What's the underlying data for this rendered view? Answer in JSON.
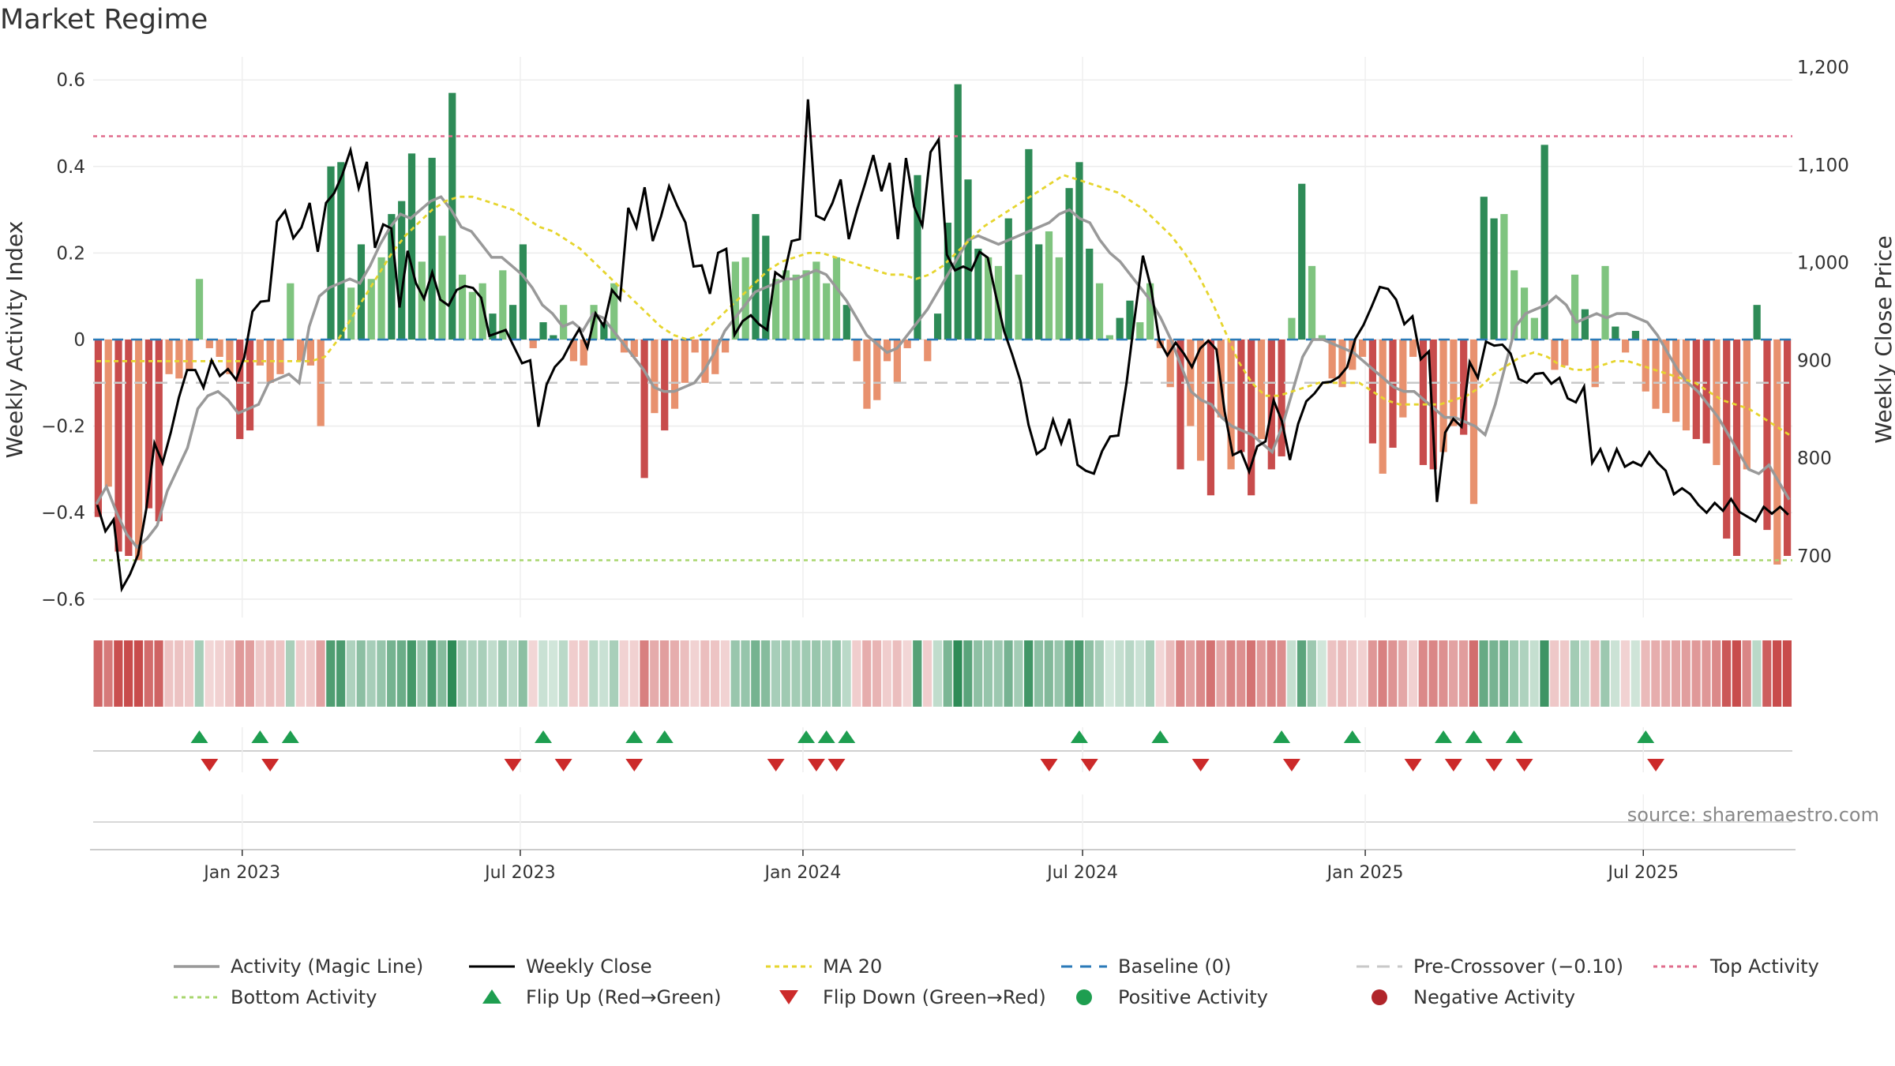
{
  "title": "Market Regime",
  "source": "source: sharemaestro.com",
  "colors": {
    "pos_strong": "#2e8b57",
    "pos_light": "#7fc47f",
    "neg_strong": "#c84c4c",
    "neg_light": "#e8916e",
    "magic_line": "#999999",
    "close_line": "#000000",
    "ma20": "#e6d52e",
    "baseline": "#2a7ab8",
    "pre_crossover": "#c8c8c8",
    "top_activity": "#e06c8c",
    "bottom_activity": "#a8d66e",
    "flip_up": "#1e9e50",
    "flip_down": "#cc2a2a"
  },
  "chart_data": {
    "type": "bar",
    "x_axis": {
      "ticks": [
        "Jan 2023",
        "Jul 2023",
        "Jan 2024",
        "Jul 2024",
        "Jan 2025",
        "Jul 2025"
      ],
      "range": [
        "2022-09-26",
        "2025-10-06"
      ]
    },
    "y_left": {
      "label": "Weekly Activity Index",
      "range": [
        -0.64,
        0.64
      ],
      "ticks": [
        "0.6",
        "0.4",
        "0.2",
        "0",
        "−0.2",
        "−0.4",
        "−0.6"
      ]
    },
    "y_right": {
      "label": "Weekly Close Price",
      "range": [
        645,
        1200
      ],
      "ticks": [
        "1,200",
        "1,100",
        "1,000",
        "900",
        "800",
        "700"
      ]
    },
    "levels": {
      "top_activity": 0.47,
      "bottom_activity": -0.51,
      "pre_crossover": -0.1,
      "baseline": 0
    },
    "activity": [
      -0.41,
      -0.34,
      -0.49,
      -0.5,
      -0.51,
      -0.39,
      -0.42,
      -0.08,
      -0.09,
      -0.07,
      0.14,
      -0.02,
      -0.04,
      -0.08,
      -0.23,
      -0.21,
      -0.06,
      -0.1,
      -0.08,
      0.13,
      -0.05,
      -0.06,
      -0.2,
      0.4,
      0.41,
      0.12,
      0.22,
      0.14,
      0.19,
      0.29,
      0.32,
      0.43,
      0.18,
      0.42,
      0.24,
      0.57,
      0.15,
      0.11,
      0.13,
      0.06,
      0.16,
      0.08,
      0.22,
      -0.02,
      0.04,
      0.01,
      0.08,
      -0.05,
      -0.06,
      0.08,
      0.04,
      0.13,
      -0.03,
      -0.04,
      -0.32,
      -0.17,
      -0.21,
      -0.16,
      -0.1,
      -0.03,
      -0.1,
      -0.08,
      -0.03,
      0.18,
      0.19,
      0.29,
      0.24,
      0.14,
      0.16,
      0.15,
      0.16,
      0.18,
      0.13,
      0.19,
      0.08,
      -0.05,
      -0.16,
      -0.14,
      -0.05,
      -0.1,
      -0.02,
      0.38,
      -0.05,
      0.06,
      0.27,
      0.59,
      0.37,
      0.21,
      0.19,
      0.17,
      0.28,
      0.15,
      0.44,
      0.22,
      0.25,
      0.19,
      0.35,
      0.41,
      0.21,
      0.13,
      0.01,
      0.05,
      0.09,
      0.04,
      0.13,
      -0.02,
      -0.11,
      -0.3,
      -0.2,
      -0.28,
      -0.36,
      -0.18,
      -0.3,
      -0.26,
      -0.36,
      -0.23,
      -0.3,
      -0.27,
      0.05,
      0.36,
      0.17,
      0.01,
      -0.09,
      -0.11,
      -0.07,
      -0.04,
      -0.24,
      -0.31,
      -0.25,
      -0.18,
      -0.04,
      -0.29,
      -0.3,
      -0.26,
      -0.2,
      -0.22,
      -0.38,
      0.33,
      0.28,
      0.29,
      0.16,
      0.12,
      0.05,
      0.45,
      -0.07,
      -0.06,
      0.15,
      0.07,
      -0.11,
      0.17,
      0.03,
      -0.03,
      0.02,
      -0.12,
      -0.16,
      -0.17,
      -0.19,
      -0.21,
      -0.23,
      -0.24,
      -0.29,
      -0.46,
      -0.5,
      -0.3,
      0.08,
      -0.44,
      -0.52,
      -0.5
    ],
    "series": [
      {
        "name": "Weekly Close",
        "axis": "right",
        "values": [
          752,
          725,
          737,
          666,
          681,
          701,
          748,
          815,
          795,
          826,
          862,
          890,
          890,
          872,
          900,
          884,
          891,
          880,
          903,
          950,
          960,
          961,
          1042,
          1053,
          1025,
          1036,
          1061,
          1011,
          1061,
          1071,
          1090,
          1115,
          1076,
          1103,
          1015,
          1039,
          1035,
          954,
          1012,
          979,
          963,
          990,
          962,
          956,
          972,
          976,
          974,
          964,
          925,
          928,
          931,
          914,
          897,
          900,
          832,
          875,
          893,
          902,
          918,
          932,
          913,
          948,
          935,
          972,
          962,
          1056,
          1036,
          1077,
          1022,
          1047,
          1078,
          1058,
          1041,
          996,
          997,
          968,
          1010,
          1014,
          926,
          940,
          946,
          937,
          931,
          990,
          984,
          1022,
          1024,
          1167,
          1048,
          1044,
          1061,
          1085,
          1024,
          1054,
          1081,
          1110,
          1073,
          1102,
          1024,
          1107,
          1057,
          1038,
          1113,
          1126,
          1008,
          992,
          996,
          992,
          1011,
          1005,
          966,
          930,
          906,
          879,
          834,
          804,
          810,
          839,
          815,
          840,
          793,
          787,
          784,
          807,
          822,
          823,
          877,
          944,
          1007,
          974,
          920,
          905,
          918,
          907,
          893,
          912,
          920,
          911,
          848,
          803,
          807,
          786,
          812,
          817,
          859,
          838,
          798,
          835,
          858,
          866,
          877,
          878,
          883,
          893,
          922,
          936,
          955,
          975,
          973,
          962,
          937,
          945,
          901,
          909,
          755,
          826,
          840,
          832,
          898,
          882,
          919,
          915,
          916,
          907,
          881,
          877,
          886,
          887,
          876,
          882,
          861,
          857,
          873,
          795,
          809,
          788,
          809,
          791,
          796,
          792,
          806,
          795,
          787,
          763,
          769,
          763,
          752,
          744,
          754,
          746,
          758,
          745,
          740,
          735,
          750,
          743,
          750,
          742
        ]
      },
      {
        "name": "Activity (Magic Line)",
        "axis": "left",
        "values": [
          -0.38,
          -0.34,
          -0.4,
          -0.45,
          -0.48,
          -0.46,
          -0.43,
          -0.35,
          -0.3,
          -0.25,
          -0.16,
          -0.13,
          -0.12,
          -0.14,
          -0.17,
          -0.16,
          -0.15,
          -0.1,
          -0.09,
          -0.08,
          -0.1,
          0.03,
          0.1,
          0.12,
          0.13,
          0.14,
          0.13,
          0.17,
          0.22,
          0.26,
          0.29,
          0.28,
          0.3,
          0.32,
          0.33,
          0.3,
          0.26,
          0.25,
          0.22,
          0.19,
          0.19,
          0.17,
          0.15,
          0.12,
          0.08,
          0.06,
          0.03,
          0.04,
          0.02,
          0.06,
          0.05,
          0.02,
          -0.01,
          -0.04,
          -0.07,
          -0.11,
          -0.12,
          -0.12,
          -0.11,
          -0.1,
          -0.07,
          -0.03,
          0.02,
          0.05,
          0.08,
          0.11,
          0.12,
          0.13,
          0.14,
          0.14,
          0.15,
          0.16,
          0.15,
          0.12,
          0.09,
          0.05,
          0.01,
          -0.01,
          -0.03,
          -0.02,
          0.01,
          0.04,
          0.07,
          0.11,
          0.15,
          0.19,
          0.23,
          0.24,
          0.23,
          0.22,
          0.23,
          0.24,
          0.25,
          0.26,
          0.27,
          0.29,
          0.3,
          0.28,
          0.27,
          0.23,
          0.2,
          0.18,
          0.15,
          0.12,
          0.09,
          0.05,
          0.0,
          -0.06,
          -0.12,
          -0.14,
          -0.15,
          -0.18,
          -0.2,
          -0.21,
          -0.22,
          -0.24,
          -0.26,
          -0.2,
          -0.12,
          -0.04,
          0.0,
          0.0,
          -0.01,
          -0.02,
          -0.03,
          -0.05,
          -0.07,
          -0.09,
          -0.11,
          -0.12,
          -0.12,
          -0.14,
          -0.16,
          -0.18,
          -0.18,
          -0.19,
          -0.2,
          -0.22,
          -0.15,
          -0.06,
          0.03,
          0.06,
          0.07,
          0.08,
          0.1,
          0.08,
          0.04,
          0.05,
          0.06,
          0.05,
          0.06,
          0.06,
          0.05,
          0.04,
          0.01,
          -0.03,
          -0.07,
          -0.1,
          -0.12,
          -0.15,
          -0.18,
          -0.22,
          -0.26,
          -0.3,
          -0.31,
          -0.29,
          -0.33,
          -0.37
        ],
        "offset": 2
      },
      {
        "name": "MA 20",
        "axis": "left",
        "values": [
          -0.05,
          -0.05,
          -0.05,
          -0.05,
          -0.05,
          -0.05,
          -0.05,
          -0.05,
          -0.05,
          -0.05,
          -0.05,
          -0.05,
          -0.05,
          -0.05,
          -0.05,
          -0.05,
          -0.05,
          -0.04,
          0.0,
          0.05,
          0.1,
          0.15,
          0.2,
          0.24,
          0.27,
          0.3,
          0.32,
          0.33,
          0.33,
          0.32,
          0.31,
          0.3,
          0.28,
          0.26,
          0.25,
          0.23,
          0.21,
          0.18,
          0.15,
          0.12,
          0.09,
          0.06,
          0.03,
          0.01,
          0.0,
          0.01,
          0.04,
          0.07,
          0.1,
          0.13,
          0.16,
          0.18,
          0.19,
          0.2,
          0.2,
          0.19,
          0.18,
          0.17,
          0.16,
          0.15,
          0.15,
          0.14,
          0.15,
          0.17,
          0.2,
          0.23,
          0.26,
          0.28,
          0.3,
          0.32,
          0.34,
          0.36,
          0.38,
          0.37,
          0.36,
          0.35,
          0.34,
          0.32,
          0.3,
          0.27,
          0.24,
          0.2,
          0.15,
          0.09,
          0.02,
          -0.05,
          -0.1,
          -0.13,
          -0.13,
          -0.12,
          -0.11,
          -0.1,
          -0.1,
          -0.1,
          -0.1,
          -0.12,
          -0.14,
          -0.15,
          -0.15,
          -0.15,
          -0.15,
          -0.14,
          -0.13,
          -0.11,
          -0.08,
          -0.06,
          -0.04,
          -0.03,
          -0.04,
          -0.06,
          -0.07,
          -0.07,
          -0.06,
          -0.05,
          -0.05,
          -0.06,
          -0.07,
          -0.08,
          -0.09,
          -0.1,
          -0.12,
          -0.14,
          -0.15,
          -0.16,
          -0.18,
          -0.2,
          -0.22
        ],
        "offset": 10
      }
    ],
    "flip_up_weeks": [
      10,
      16,
      19,
      44,
      53,
      56,
      70,
      72,
      74,
      97,
      105,
      117,
      124,
      133,
      136,
      140,
      153
    ],
    "flip_down_weeks": [
      11,
      17,
      41,
      46,
      53,
      67,
      71,
      73,
      94,
      98,
      109,
      118,
      130,
      134,
      138,
      141,
      154
    ],
    "legend": {
      "placement": "bottom",
      "items": [
        "Activity (Magic Line)",
        "Weekly Close",
        "MA 20",
        "Baseline (0)",
        "Pre-Crossover (−0.10)",
        "Top Activity",
        "Bottom Activity",
        "Flip Up (Red→Green)",
        "Flip Down (Green→Red)",
        "Positive Activity",
        "Negative Activity"
      ]
    }
  }
}
